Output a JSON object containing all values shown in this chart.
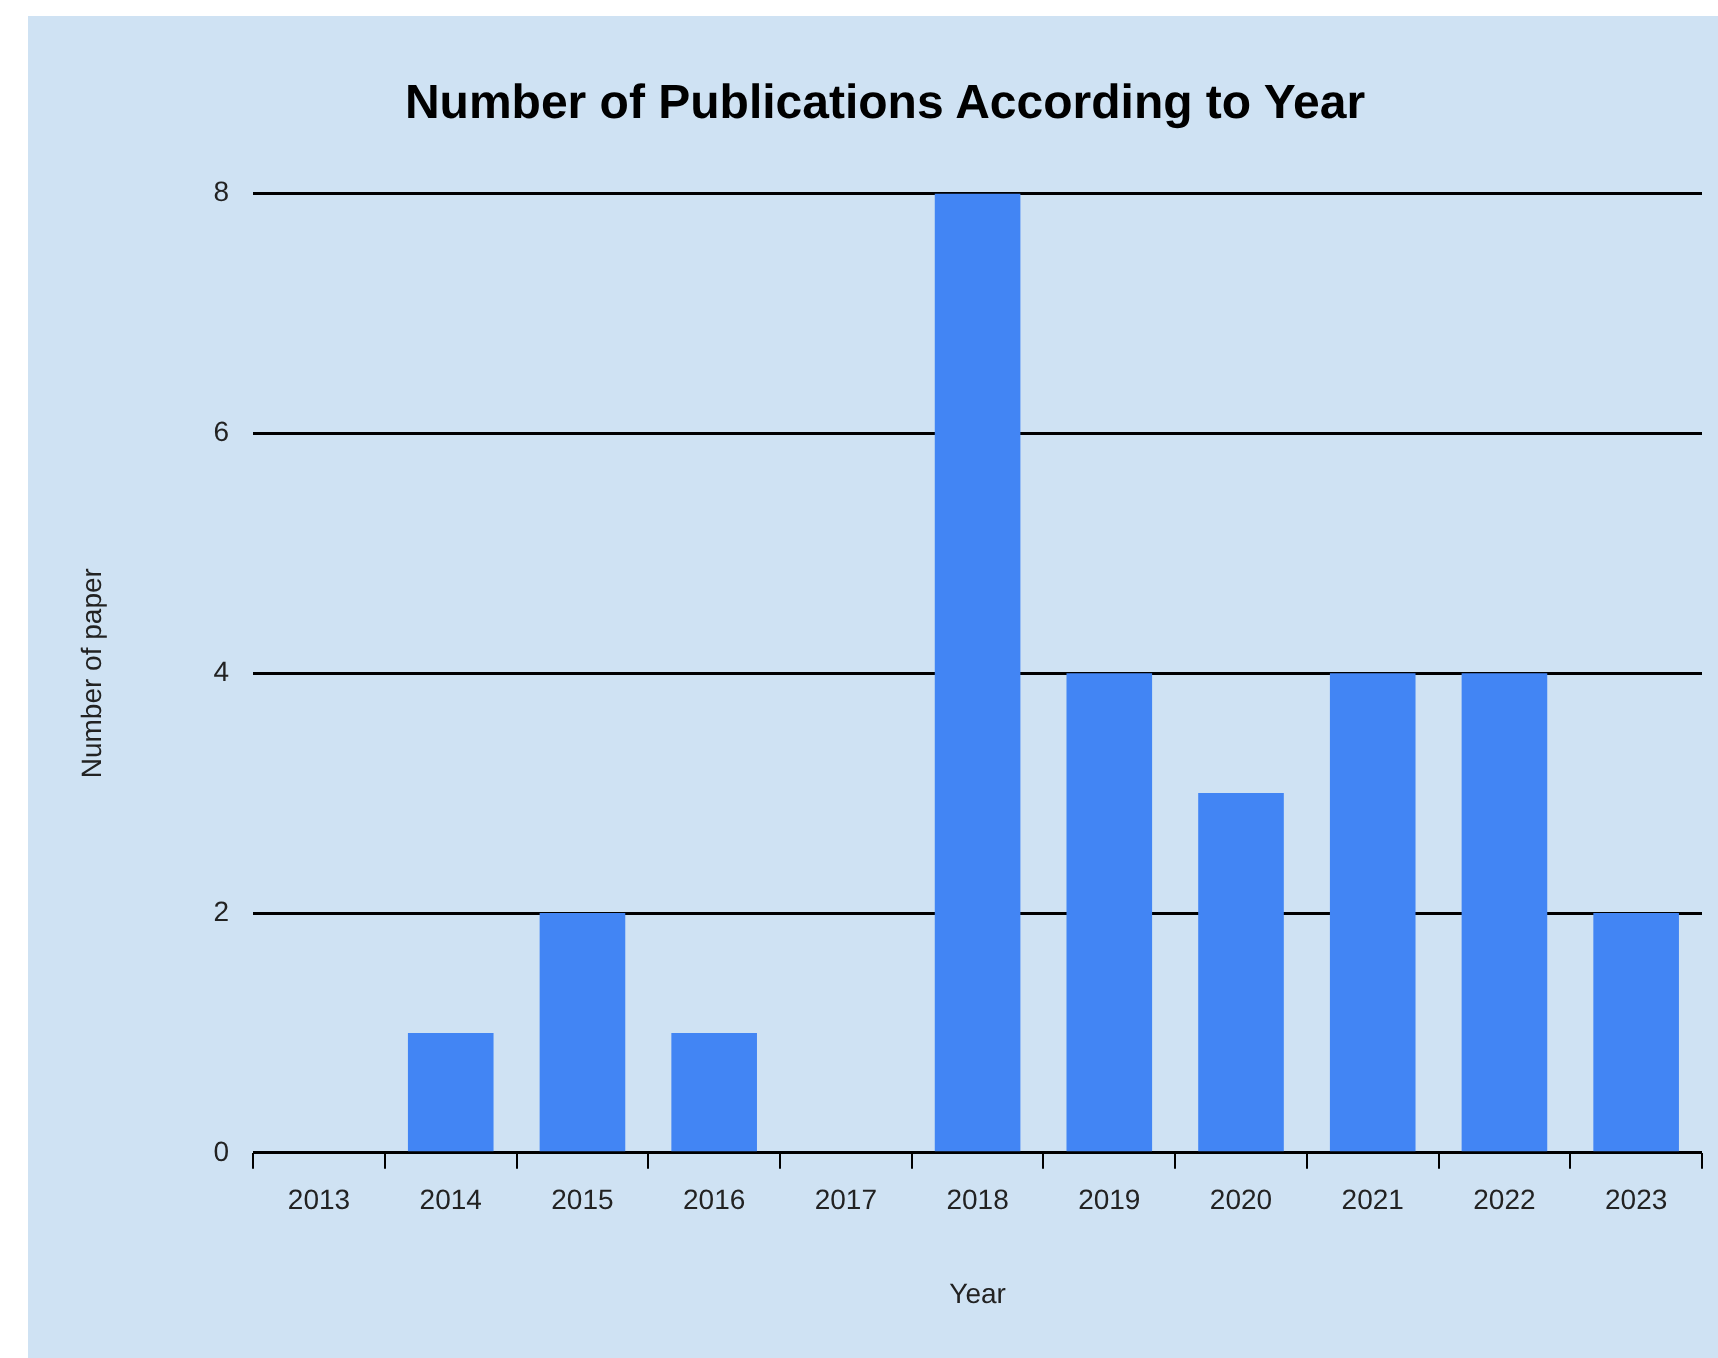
{
  "chart_data": {
    "type": "bar",
    "title": "Number of Publications According to Year",
    "xlabel": "Year",
    "ylabel": "Number of paper",
    "categories": [
      "2013",
      "2014",
      "2015",
      "2016",
      "2017",
      "2018",
      "2019",
      "2020",
      "2021",
      "2022",
      "2023"
    ],
    "values": [
      0,
      1,
      2,
      1,
      0,
      8,
      4,
      3,
      4,
      4,
      2
    ],
    "color": "#4285f4",
    "ylim": [
      0,
      8
    ],
    "yticks": [
      0,
      2,
      4,
      6,
      8
    ],
    "grid": "y",
    "legend": false
  }
}
